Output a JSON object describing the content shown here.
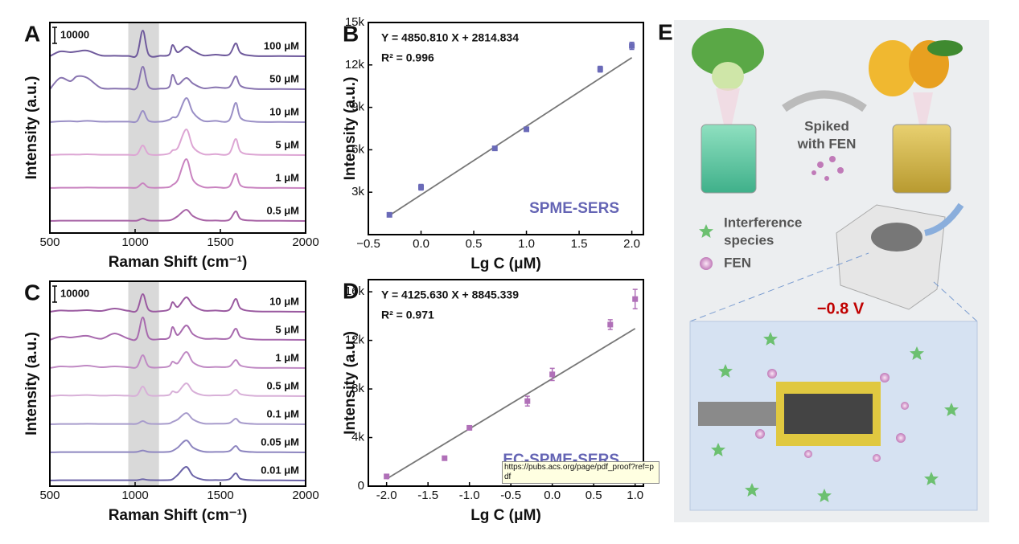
{
  "chart_data": [
    {
      "type": "spectra",
      "panel": "A",
      "xlabel": "Raman Shift (cm⁻¹)",
      "ylabel": "Intensity (a.u.)",
      "xlim": [
        500,
        2000
      ],
      "xticks": [
        500,
        1000,
        1500,
        2000
      ],
      "highlight_range": [
        960,
        1140
      ],
      "scale_bar": 10000,
      "x": [
        500,
        560,
        620,
        660,
        720,
        800,
        880,
        960,
        1010,
        1045,
        1080,
        1150,
        1200,
        1220,
        1250,
        1300,
        1340,
        1400,
        1470,
        1550,
        1590,
        1620,
        1700,
        1850,
        2000
      ],
      "series": [
        {
          "name": "100 μM",
          "color": "#6f5a9c",
          "values": [
            0,
            3000,
            2500,
            3000,
            3500,
            500,
            300,
            200,
            800,
            16000,
            1000,
            300,
            1000,
            7000,
            2500,
            6000,
            3500,
            500,
            1000,
            1000,
            8000,
            2000,
            200,
            100,
            0
          ]
        },
        {
          "name": "50 μM",
          "color": "#8874b0",
          "values": [
            0,
            7000,
            5000,
            8000,
            7000,
            800,
            400,
            300,
            1000,
            14000,
            1500,
            400,
            1500,
            9000,
            3000,
            7000,
            3500,
            600,
            1200,
            1200,
            8000,
            2000,
            200,
            100,
            0
          ]
        },
        {
          "name": "10 μM",
          "color": "#9a8fc6",
          "values": [
            0,
            500,
            600,
            400,
            800,
            300,
            300,
            300,
            500,
            7000,
            800,
            300,
            1500,
            3000,
            4000,
            15000,
            6000,
            800,
            800,
            1000,
            12000,
            2500,
            300,
            100,
            0
          ]
        },
        {
          "name": "5 μM",
          "color": "#dda6d4",
          "values": [
            0,
            300,
            400,
            300,
            500,
            200,
            200,
            200,
            400,
            6000,
            600,
            200,
            1000,
            3000,
            4500,
            16000,
            5000,
            600,
            600,
            900,
            10000,
            2000,
            300,
            100,
            0
          ]
        },
        {
          "name": "1 μM",
          "color": "#c983c0",
          "values": [
            0,
            200,
            200,
            200,
            300,
            200,
            200,
            200,
            300,
            3000,
            400,
            200,
            600,
            2000,
            5000,
            18000,
            5000,
            600,
            500,
            800,
            9000,
            1500,
            200,
            100,
            0
          ]
        },
        {
          "name": "0.5 μM",
          "color": "#a864a6",
          "values": [
            0,
            200,
            200,
            200,
            200,
            200,
            200,
            200,
            200,
            1500,
            300,
            200,
            400,
            1000,
            3000,
            7000,
            3000,
            500,
            300,
            600,
            6000,
            1200,
            200,
            100,
            0
          ]
        }
      ]
    },
    {
      "type": "scatter_fit",
      "panel": "B",
      "xlabel": "Lg C (μM)",
      "ylabel": "Intensity (a.u.)",
      "annotation": "SPME-SERS",
      "color": "#6a6ab8",
      "line_color": "#777777",
      "xlim": [
        -0.5,
        2.11
      ],
      "xticks": [
        {
          "value": -0.5,
          "label": "−0.5"
        },
        {
          "value": 0,
          "label": "0.0"
        },
        0.5,
        {
          "value": 1,
          "label": "1.0"
        },
        1.5,
        {
          "value": 2,
          "label": "2.0"
        }
      ],
      "ylim": [
        0,
        15000
      ],
      "yticks": [
        {
          "value": 3000,
          "label": "3k"
        },
        {
          "value": 6000,
          "label": "6k"
        },
        {
          "value": 9000,
          "label": "9k"
        },
        {
          "value": 12000,
          "label": "12k"
        },
        {
          "value": 15000,
          "label": "15k"
        }
      ],
      "x": [
        -0.3,
        0,
        0.7,
        1,
        1.7,
        2
      ],
      "values": [
        1400,
        3350,
        6100,
        7450,
        11700,
        13350
      ],
      "errors": [
        100,
        200,
        100,
        100,
        200,
        250
      ],
      "fit": {
        "slope": 4850.81,
        "intercept": 2814.834,
        "equation": "Y = 4850.810 X + 2814.834",
        "r2": "R² = 0.996"
      }
    },
    {
      "type": "spectra",
      "panel": "C",
      "xlabel": "Raman Shift (cm⁻¹)",
      "ylabel": "Intensity (a.u.)",
      "xlim": [
        500,
        2000
      ],
      "xticks": [
        500,
        1000,
        1500,
        2000
      ],
      "highlight_range": [
        960,
        1140
      ],
      "scale_bar": 10000,
      "x": [
        500,
        560,
        620,
        660,
        720,
        800,
        880,
        960,
        1010,
        1045,
        1080,
        1150,
        1200,
        1220,
        1250,
        1300,
        1340,
        1400,
        1470,
        1550,
        1590,
        1620,
        1700,
        1850,
        2000
      ],
      "series": [
        {
          "name": "10 μM",
          "color": "#9a5aa0",
          "values": [
            0,
            800,
            600,
            700,
            1000,
            500,
            2000,
            600,
            800,
            11000,
            1200,
            400,
            1500,
            6000,
            3000,
            9000,
            4000,
            800,
            800,
            1000,
            8000,
            2000,
            300,
            100,
            0
          ]
        },
        {
          "name": "5 μM",
          "color": "#a86aae",
          "values": [
            0,
            2000,
            1500,
            2000,
            2500,
            700,
            4000,
            800,
            1000,
            14000,
            1500,
            500,
            1500,
            8000,
            3000,
            9000,
            3500,
            800,
            800,
            1000,
            7000,
            1800,
            300,
            100,
            0
          ]
        },
        {
          "name": "1 μM",
          "color": "#c08ac4",
          "values": [
            0,
            1000,
            800,
            1000,
            1500,
            500,
            1000,
            500,
            700,
            8000,
            1000,
            400,
            1200,
            4000,
            3000,
            10000,
            3500,
            700,
            700,
            900,
            5000,
            1500,
            200,
            100,
            0
          ]
        },
        {
          "name": "0.5 μM",
          "color": "#d8b0d8",
          "values": [
            0,
            500,
            400,
            500,
            700,
            300,
            500,
            300,
            500,
            6000,
            700,
            300,
            800,
            3000,
            2500,
            8000,
            3000,
            600,
            500,
            800,
            4000,
            1200,
            200,
            100,
            0
          ]
        },
        {
          "name": "0.1 μM",
          "color": "#a89ccc",
          "values": [
            0,
            200,
            200,
            200,
            300,
            200,
            200,
            200,
            300,
            2000,
            400,
            200,
            500,
            1500,
            3000,
            7000,
            3000,
            500,
            400,
            700,
            3500,
            1000,
            200,
            100,
            0
          ]
        },
        {
          "name": "0.05 μM",
          "color": "#8e86c0",
          "values": [
            0,
            200,
            200,
            200,
            200,
            200,
            200,
            200,
            300,
            1200,
            300,
            200,
            400,
            1000,
            3000,
            7500,
            3000,
            500,
            300,
            700,
            4000,
            1000,
            200,
            100,
            0
          ]
        },
        {
          "name": "0.01 μM",
          "color": "#6c64a8",
          "values": [
            0,
            200,
            200,
            200,
            200,
            200,
            200,
            200,
            200,
            800,
            300,
            200,
            300,
            800,
            3500,
            8500,
            3000,
            500,
            300,
            700,
            4500,
            1000,
            200,
            100,
            0
          ]
        }
      ]
    },
    {
      "type": "scatter_fit",
      "panel": "D",
      "xlabel": "Lg C (μM)",
      "ylabel": "Intensity (a.u.)",
      "annotation": "EC-SPME-SERS",
      "color": "#b070b8",
      "line_color": "#777777",
      "xlim": [
        -2.22,
        1.1
      ],
      "xticks": [
        {
          "value": -2,
          "label": "-2.0"
        },
        -1.5,
        {
          "value": -1,
          "label": "-1.0"
        },
        -0.5,
        {
          "value": 0,
          "label": "0.0"
        },
        0.5,
        {
          "value": 1,
          "label": "1.0"
        }
      ],
      "ylim": [
        0,
        17000
      ],
      "yticks": [
        0,
        {
          "value": 4000,
          "label": "4k"
        },
        {
          "value": 8000,
          "label": "8k"
        },
        {
          "value": 12000,
          "label": "12k"
        },
        {
          "value": 16000,
          "label": "16k"
        }
      ],
      "x": [
        -2,
        -1.3,
        -1,
        -0.3,
        0,
        0.7,
        1
      ],
      "values": [
        800,
        2300,
        4800,
        7000,
        9200,
        13300,
        15400
      ],
      "errors": [
        100,
        100,
        100,
        400,
        500,
        400,
        800
      ],
      "fit": {
        "slope": 4125.63,
        "intercept": 8845.339,
        "equation": "Y = 4125.630 X + 8845.339",
        "r2": "R² = 0.971"
      }
    }
  ],
  "diagram": {
    "panel": "E",
    "arrow_label": [
      "Spiked",
      "with FEN"
    ],
    "legend": [
      [
        "Interference",
        "species"
      ],
      [
        "FEN"
      ]
    ],
    "potential": "−0.8 V"
  },
  "tooltip": "https://pubs.acs.org/page/pdf_proof?ref=pdf"
}
